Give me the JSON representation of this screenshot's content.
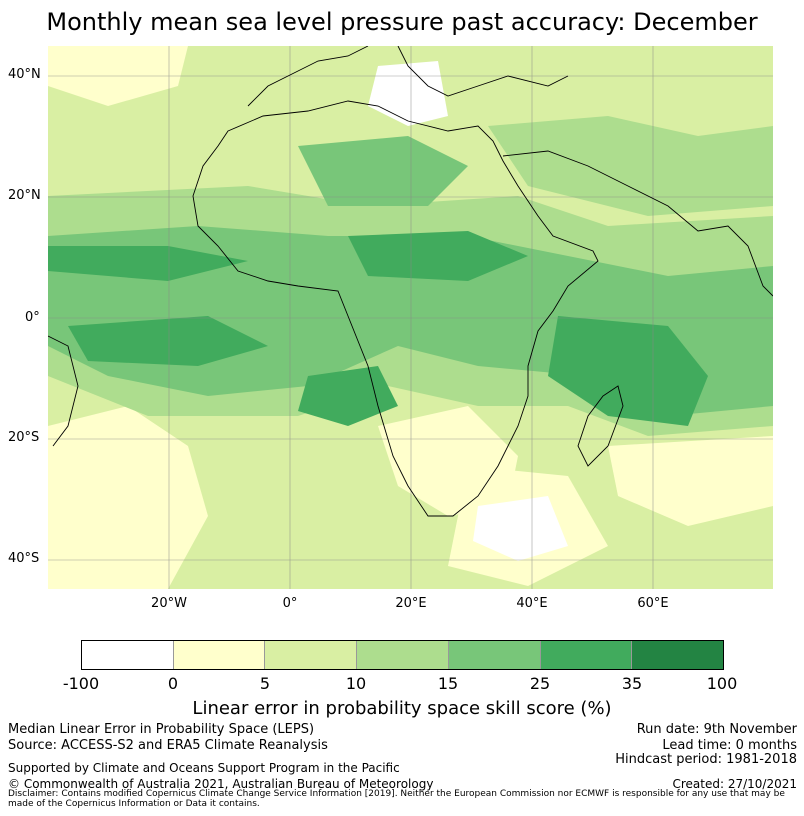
{
  "title": "Monthly mean sea level pressure past accuracy: December",
  "map": {
    "lat_labels": [
      "40°N",
      "20°N",
      "0°",
      "20°S",
      "40°S"
    ],
    "lon_labels": [
      "20°W",
      "0°",
      "20°E",
      "40°E",
      "60°E"
    ],
    "colors": {
      "c1": "#ffffff",
      "c2": "#ffffcc",
      "c3": "#d9efa3",
      "c4": "#addd8e",
      "c5": "#78c679",
      "c6": "#41ab5d",
      "c7": "#238443"
    }
  },
  "colorbar": {
    "ticks": [
      "-100",
      "0",
      "5",
      "10",
      "15",
      "25",
      "35",
      "100"
    ],
    "colors": [
      "#ffffff",
      "#ffffcc",
      "#d9efa3",
      "#addd8e",
      "#78c679",
      "#41ab5d",
      "#238443"
    ],
    "label": "Linear error in probability space skill score (%)"
  },
  "footer": {
    "method": "Median Linear Error in Probability Space (LEPS)",
    "source": "Source: ACCESS-S2 and ERA5 Climate Reanalysis",
    "supported": "Supported by Climate and Oceans Support Program in the Pacific",
    "copyright": "© Commonwealth of Australia 2021, Australian Bureau of Meteorology",
    "disclaimer": "Disclaimer: Contains modified Copernicus Climate Change Service Information [2019]. Neither the European Commission nor ECMWF is responsible for any use that may be made of the Copernicus Information or Data it contains.",
    "run_date": "Run date: 9th November",
    "lead_time": "Lead time: 0 months",
    "hindcast": "Hindcast period: 1981-2018",
    "created": "Created: 27/10/2021"
  }
}
